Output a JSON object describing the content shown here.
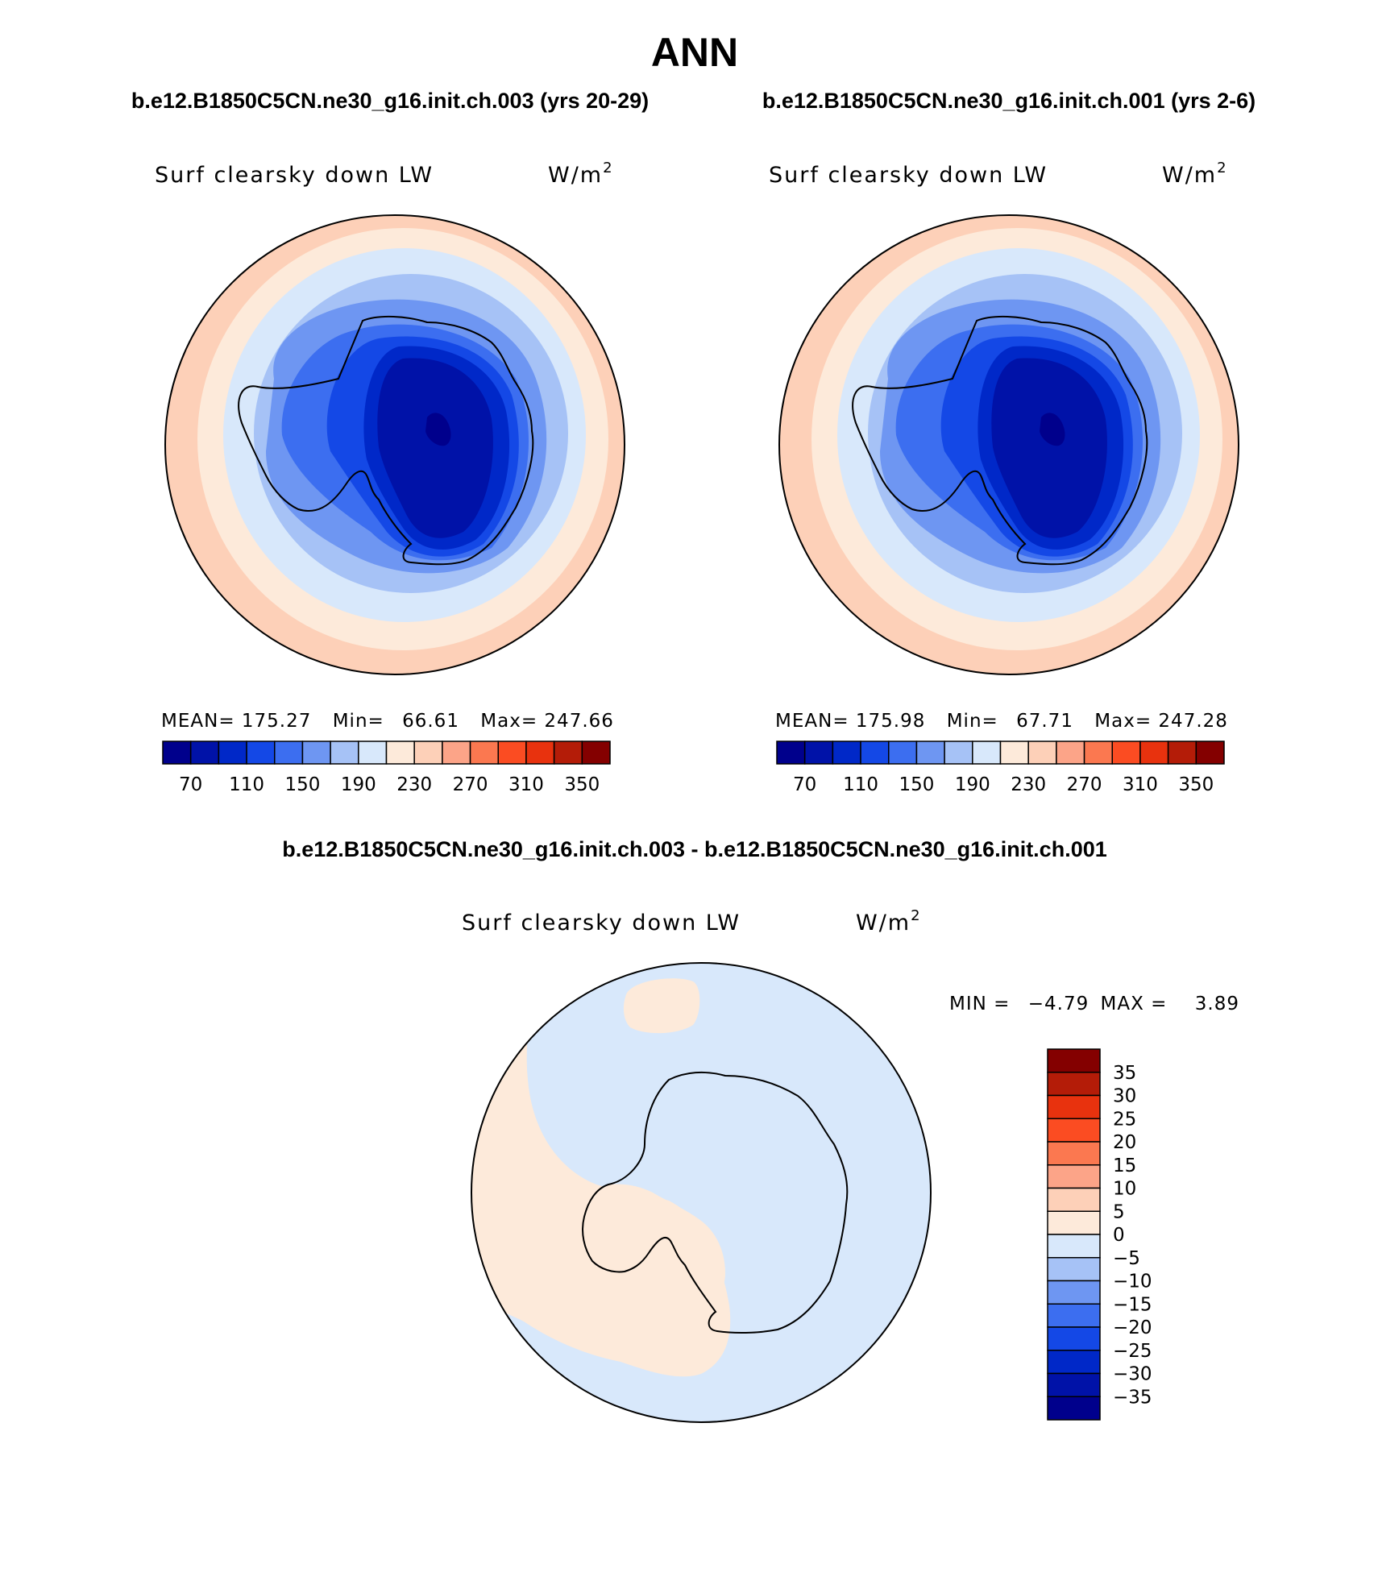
{
  "title": "ANN",
  "panels": [
    {
      "case_title": "b.e12.B1850C5CN.ne30_g16.init.ch.003 (yrs 20-29)",
      "variable": "Surf clearsky down LW",
      "units": "W/m",
      "units_sup": "2",
      "stats": {
        "mean_label": "MEAN=",
        "mean": "175.27",
        "min_label": "Min=",
        "min": "66.61",
        "max_label": "Max=",
        "max": "247.66"
      }
    },
    {
      "case_title": "b.e12.B1850C5CN.ne30_g16.init.ch.001 (yrs 2-6)",
      "variable": "Surf clearsky down LW",
      "units": "W/m",
      "units_sup": "2",
      "stats": {
        "mean_label": "MEAN=",
        "mean": "175.98",
        "min_label": "Min=",
        "min": "67.71",
        "max_label": "Max=",
        "max": "247.28"
      }
    }
  ],
  "abs_colorbar": {
    "colors": [
      "#00008c",
      "#0012a8",
      "#0028c8",
      "#1448e6",
      "#3c6ef0",
      "#6e96f2",
      "#a6c2f6",
      "#d8e8fb",
      "#fdeada",
      "#fdd0b8",
      "#fca488",
      "#fb7850",
      "#fb4c22",
      "#e8320e",
      "#b41c08",
      "#840000"
    ],
    "tick_labels": [
      "70",
      "110",
      "150",
      "190",
      "230",
      "270",
      "310",
      "350"
    ]
  },
  "diff_panel": {
    "case_title": "b.e12.B1850C5CN.ne30_g16.init.ch.003 - b.e12.B1850C5CN.ne30_g16.init.ch.001",
    "variable": "Surf clearsky down LW",
    "units": "W/m",
    "units_sup": "2",
    "min_label": "MIN =",
    "min": "−4.79",
    "max_label": "MAX =",
    "max": "3.89",
    "colorbar": {
      "colors_top_to_bottom": [
        "#840000",
        "#b41c08",
        "#e8320e",
        "#fb4c22",
        "#fb7850",
        "#fca488",
        "#fdd0b8",
        "#fdeada",
        "#d8e8fb",
        "#a6c2f6",
        "#6e96f2",
        "#3c6ef0",
        "#1448e6",
        "#0028c8",
        "#0012a8",
        "#00008c"
      ],
      "tick_labels": [
        "35",
        "30",
        "25",
        "20",
        "15",
        "10",
        "5",
        "0",
        "−5",
        "−10",
        "−15",
        "−20",
        "−25",
        "−30",
        "−35"
      ]
    }
  }
}
